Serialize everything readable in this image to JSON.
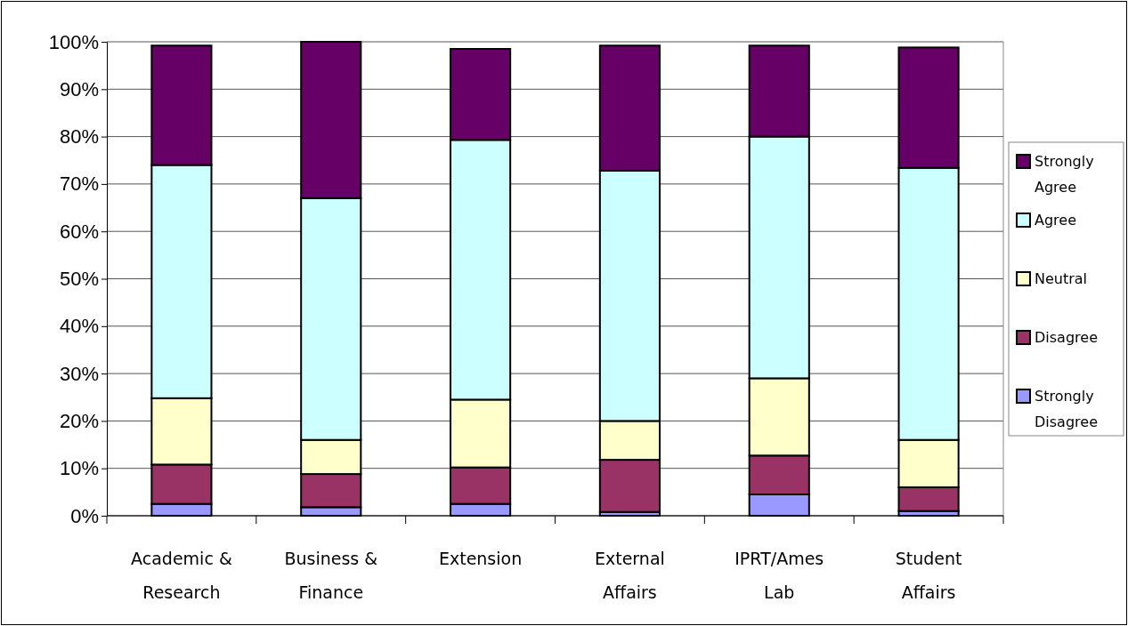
{
  "chart_data": {
    "type": "bar",
    "stacked": true,
    "categories": [
      "Academic & Research",
      "Business & Finance",
      "Extension",
      "External Affairs",
      "IPRT/Ames Lab",
      "Student Affairs"
    ],
    "series": [
      {
        "name": "Strongly Disagree",
        "color": "#9999ff",
        "values": [
          2.5,
          1.8,
          2.5,
          0.8,
          4.5,
          1
        ]
      },
      {
        "name": "Disagree",
        "color": "#993366",
        "values": [
          8.3,
          7,
          7.7,
          11,
          8.2,
          5
        ]
      },
      {
        "name": "Neutral",
        "color": "#ffffcc",
        "values": [
          14,
          7.2,
          14.3,
          8.2,
          16.3,
          10
        ]
      },
      {
        "name": "Agree",
        "color": "#ccffff",
        "values": [
          49.2,
          51,
          54.8,
          52.8,
          51,
          57.4
        ]
      },
      {
        "name": "Strongly Agree",
        "color": "#660066",
        "values": [
          25.2,
          33,
          19.2,
          26.4,
          19.2,
          25.4
        ]
      }
    ],
    "ylim": [
      0,
      100
    ],
    "yticks": [
      {
        "value": 0,
        "label": "0%"
      },
      {
        "value": 10,
        "label": "10%"
      },
      {
        "value": 20,
        "label": "20%"
      },
      {
        "value": 30,
        "label": "30%"
      },
      {
        "value": 40,
        "label": "40%"
      },
      {
        "value": 50,
        "label": "50%"
      },
      {
        "value": 60,
        "label": "60%"
      },
      {
        "value": 70,
        "label": "70%"
      },
      {
        "value": 80,
        "label": "80%"
      },
      {
        "value": 90,
        "label": "90%"
      },
      {
        "value": 100,
        "label": "100%"
      }
    ],
    "grid": "y",
    "legend": "right"
  }
}
